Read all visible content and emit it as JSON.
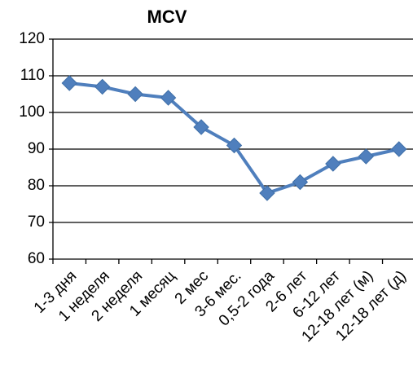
{
  "chart_data": {
    "type": "line",
    "title": "MCV",
    "categories": [
      "1-3 дня",
      "1 неделя",
      "2 неделя",
      "1 месяц",
      "2 мес",
      "3-6 мес.",
      "0,5-2 года",
      "2-6 лет",
      "6-12 лет",
      "12-18 лет (м)",
      "12-18 лет (д)"
    ],
    "values": [
      108,
      107,
      105,
      104,
      96,
      91,
      78,
      81,
      86,
      88,
      90
    ],
    "color": "#4f7fbd",
    "ylim": [
      60,
      120
    ],
    "yticks": [
      60,
      70,
      80,
      90,
      100,
      110,
      120
    ],
    "grid": true
  }
}
